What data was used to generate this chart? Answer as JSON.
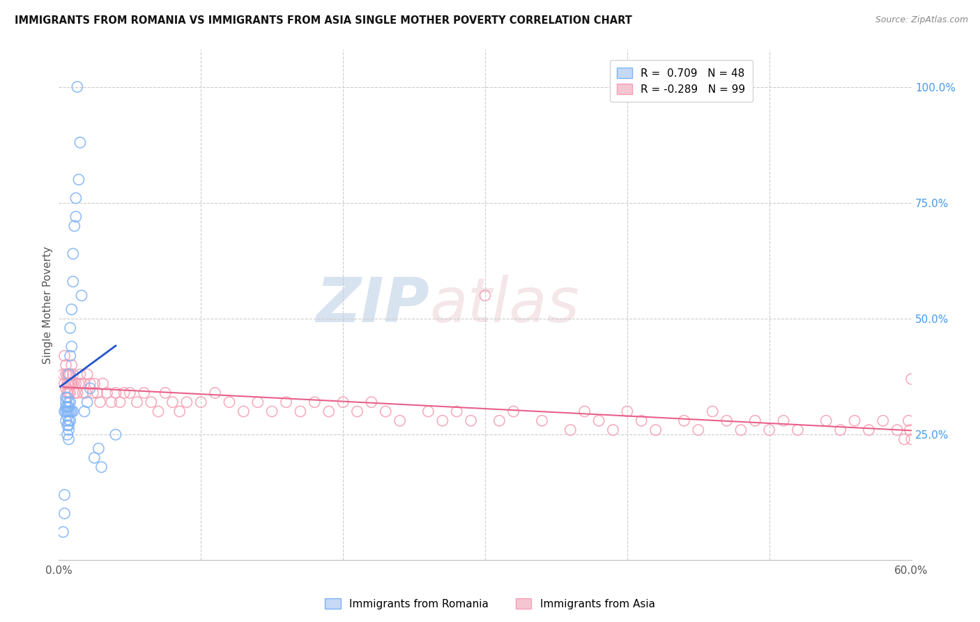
{
  "title": "IMMIGRANTS FROM ROMANIA VS IMMIGRANTS FROM ASIA SINGLE MOTHER POVERTY CORRELATION CHART",
  "source": "Source: ZipAtlas.com",
  "ylabel": "Single Mother Poverty",
  "xlim": [
    0.0,
    0.6
  ],
  "ylim": [
    -0.02,
    1.08
  ],
  "x_ticks": [
    0.0,
    0.1,
    0.2,
    0.3,
    0.4,
    0.5,
    0.6
  ],
  "x_tick_labels": [
    "0.0%",
    "",
    "",
    "",
    "",
    "",
    "60.0%"
  ],
  "y_ticks_right": [
    0.25,
    0.5,
    0.75,
    1.0
  ],
  "y_tick_labels_right": [
    "25.0%",
    "50.0%",
    "75.0%",
    "100.0%"
  ],
  "romania_color": "#7fb3f5",
  "asia_color": "#f5a0b5",
  "romania_line_color": "#2255cc",
  "asia_line_color": "#e8608a",
  "romania_R": 0.709,
  "romania_N": 48,
  "asia_R": -0.289,
  "asia_N": 99,
  "right_tick_color": "#4499ee",
  "romania_x": [
    0.003,
    0.004,
    0.004,
    0.004,
    0.005,
    0.005,
    0.005,
    0.005,
    0.005,
    0.006,
    0.006,
    0.006,
    0.006,
    0.006,
    0.006,
    0.007,
    0.007,
    0.007,
    0.007,
    0.007,
    0.007,
    0.007,
    0.007,
    0.008,
    0.008,
    0.008,
    0.008,
    0.008,
    0.009,
    0.009,
    0.009,
    0.01,
    0.01,
    0.01,
    0.011,
    0.012,
    0.012,
    0.013,
    0.014,
    0.015,
    0.016,
    0.018,
    0.02,
    0.022,
    0.025,
    0.028,
    0.03,
    0.04
  ],
  "romania_y": [
    0.04,
    0.08,
    0.12,
    0.3,
    0.28,
    0.3,
    0.31,
    0.32,
    0.33,
    0.25,
    0.27,
    0.29,
    0.3,
    0.31,
    0.33,
    0.24,
    0.26,
    0.27,
    0.28,
    0.3,
    0.31,
    0.32,
    0.38,
    0.28,
    0.3,
    0.32,
    0.42,
    0.48,
    0.3,
    0.44,
    0.52,
    0.3,
    0.58,
    0.64,
    0.7,
    0.72,
    0.76,
    1.0,
    0.8,
    0.88,
    0.55,
    0.3,
    0.32,
    0.35,
    0.2,
    0.22,
    0.18,
    0.25
  ],
  "asia_x": [
    0.003,
    0.004,
    0.004,
    0.005,
    0.005,
    0.005,
    0.006,
    0.006,
    0.006,
    0.007,
    0.007,
    0.007,
    0.008,
    0.008,
    0.008,
    0.009,
    0.009,
    0.01,
    0.01,
    0.011,
    0.012,
    0.013,
    0.014,
    0.015,
    0.016,
    0.017,
    0.018,
    0.019,
    0.02,
    0.022,
    0.024,
    0.025,
    0.027,
    0.029,
    0.031,
    0.034,
    0.037,
    0.04,
    0.043,
    0.046,
    0.05,
    0.055,
    0.06,
    0.065,
    0.07,
    0.075,
    0.08,
    0.085,
    0.09,
    0.1,
    0.11,
    0.12,
    0.13,
    0.14,
    0.15,
    0.16,
    0.17,
    0.18,
    0.19,
    0.2,
    0.21,
    0.22,
    0.23,
    0.24,
    0.26,
    0.27,
    0.28,
    0.29,
    0.3,
    0.31,
    0.32,
    0.34,
    0.36,
    0.37,
    0.38,
    0.39,
    0.4,
    0.41,
    0.42,
    0.44,
    0.45,
    0.46,
    0.47,
    0.48,
    0.49,
    0.5,
    0.51,
    0.52,
    0.54,
    0.55,
    0.56,
    0.57,
    0.58,
    0.59,
    0.595,
    0.598,
    0.599,
    0.6,
    0.6
  ],
  "asia_y": [
    0.38,
    0.42,
    0.36,
    0.38,
    0.4,
    0.35,
    0.38,
    0.36,
    0.34,
    0.38,
    0.36,
    0.34,
    0.38,
    0.36,
    0.34,
    0.4,
    0.36,
    0.38,
    0.36,
    0.34,
    0.36,
    0.34,
    0.36,
    0.38,
    0.36,
    0.34,
    0.36,
    0.34,
    0.38,
    0.36,
    0.34,
    0.36,
    0.34,
    0.32,
    0.36,
    0.34,
    0.32,
    0.34,
    0.32,
    0.34,
    0.34,
    0.32,
    0.34,
    0.32,
    0.3,
    0.34,
    0.32,
    0.3,
    0.32,
    0.32,
    0.34,
    0.32,
    0.3,
    0.32,
    0.3,
    0.32,
    0.3,
    0.32,
    0.3,
    0.32,
    0.3,
    0.32,
    0.3,
    0.28,
    0.3,
    0.28,
    0.3,
    0.28,
    0.55,
    0.28,
    0.3,
    0.28,
    0.26,
    0.3,
    0.28,
    0.26,
    0.3,
    0.28,
    0.26,
    0.28,
    0.26,
    0.3,
    0.28,
    0.26,
    0.28,
    0.26,
    0.28,
    0.26,
    0.28,
    0.26,
    0.28,
    0.26,
    0.28,
    0.26,
    0.24,
    0.28,
    0.26,
    0.37,
    0.24
  ]
}
